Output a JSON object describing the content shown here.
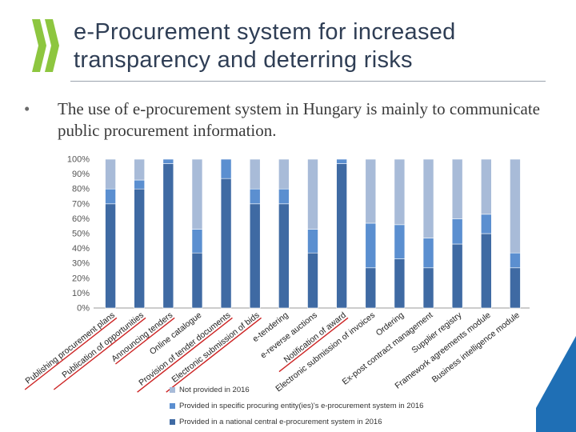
{
  "slide": {
    "title_line1": "e-Procurement  system  for  increased",
    "title_line2": "transparency and deterring risks",
    "bullet": "The use of e-procurement system in Hungary is mainly to communicate public procurement information.",
    "bullet_symbol": "•"
  },
  "colors": {
    "title": "#2f3e55",
    "dark": "#3f6aa3",
    "mid": "#5b8fd0",
    "light": "#a8bbd8",
    "logo": "#8dc63f",
    "accent_red": "#cc2222",
    "corner": "#1f6fb5"
  },
  "chart_data": {
    "type": "bar",
    "stacked": true,
    "categories": [
      "Publishing procurement plans",
      "Publication of opportunities",
      "Announcing tenders",
      "Online catalogue",
      "Provision of tender documents",
      "Electronic submission of bids",
      "e-tendering",
      "e-reverse auctions",
      "Notification of award",
      "Electronic submission of invoices",
      "Ordering",
      "Ex-post contract management",
      "Supplier registry",
      "Framework agreements module",
      "Business intelligence module"
    ],
    "series": [
      {
        "name": "Provided in a national central e-procurement system in 2016",
        "color": "#3f6aa3",
        "values": [
          70,
          80,
          97,
          37,
          87,
          70,
          70,
          37,
          97,
          27,
          33,
          27,
          43,
          50,
          27
        ]
      },
      {
        "name": "Provided in specific procuring entity(ies)'s e-procurement system in 2016",
        "color": "#5b8fd0",
        "values": [
          10,
          6,
          3,
          16,
          13,
          10,
          10,
          16,
          3,
          30,
          23,
          20,
          17,
          13,
          10
        ]
      },
      {
        "name": "Not provided in 2016",
        "color": "#a8bbd8",
        "values": [
          20,
          14,
          0,
          47,
          0,
          20,
          20,
          47,
          0,
          43,
          44,
          53,
          40,
          37,
          63
        ]
      }
    ],
    "highlighted_categories": [
      0,
      1,
      2,
      4,
      5,
      8
    ],
    "yticks": [
      "0%",
      "10%",
      "20%",
      "30%",
      "40%",
      "50%",
      "60%",
      "70%",
      "80%",
      "90%",
      "100%"
    ],
    "ylim": [
      0,
      100
    ],
    "grid": false,
    "legend_position": "bottom-left"
  }
}
